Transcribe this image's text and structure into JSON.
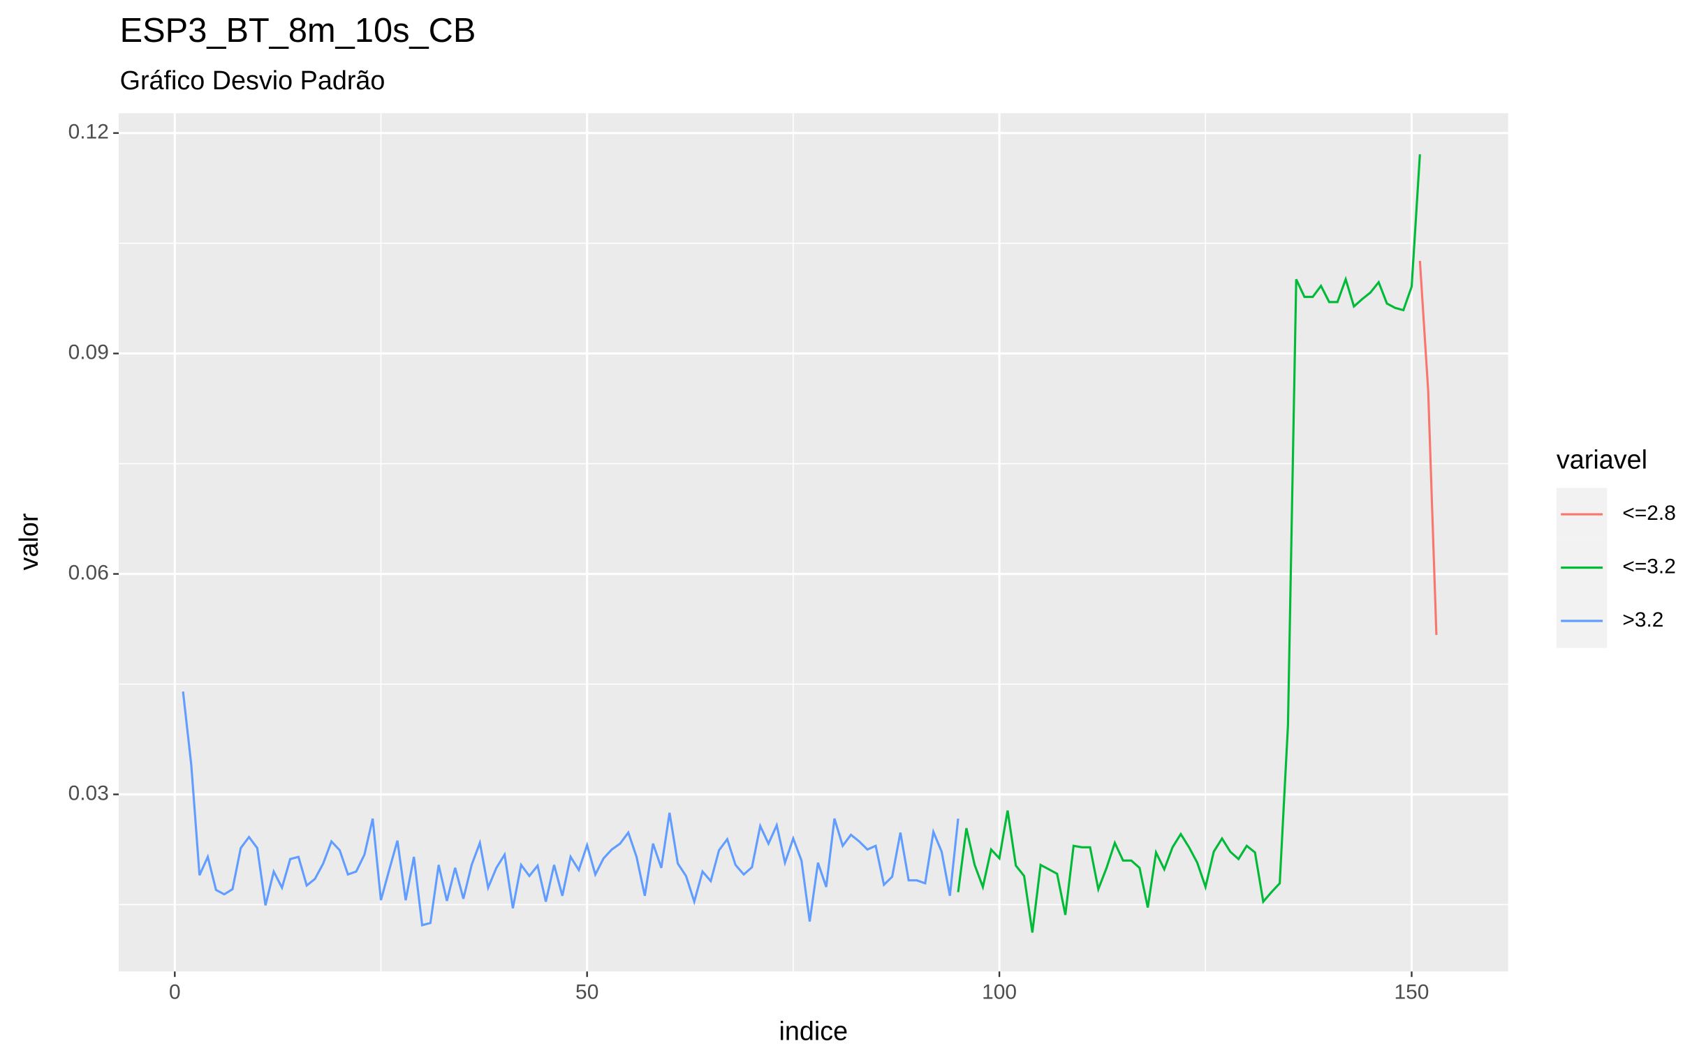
{
  "chart_data": {
    "type": "line",
    "title": "ESP3_BT_8m_10s_CB",
    "subtitle": "Gráfico Desvio Padrão",
    "x_label": "indice",
    "y_label": "valor",
    "legend_title": "variavel",
    "legend_position": "right",
    "grid": true,
    "xlim": [
      -6.8,
      161.7
    ],
    "xticks": [
      0,
      50,
      100,
      150
    ],
    "ylim": [
      0.0059,
      0.1227
    ],
    "yticks": [
      0.03,
      0.06,
      0.09,
      0.12
    ],
    "series": [
      {
        "name": "<=2.8",
        "color": "#f8766d",
        "x": [
          151,
          152,
          153
        ],
        "values": [
          0.1026,
          0.085,
          0.0517
        ]
      },
      {
        "name": "<=3.2",
        "color": "#00ba38",
        "x": [
          95,
          96,
          97,
          98,
          99,
          100,
          101,
          102,
          103,
          104,
          105,
          106,
          107,
          108,
          109,
          110,
          111,
          112,
          113,
          114,
          115,
          116,
          117,
          118,
          119,
          120,
          121,
          122,
          123,
          124,
          125,
          126,
          127,
          128,
          129,
          130,
          131,
          132,
          133,
          134,
          135,
          136,
          137,
          138,
          139,
          140,
          141,
          142,
          143,
          144,
          145,
          146,
          147,
          148,
          149,
          150,
          151
        ],
        "values": [
          0.0167,
          0.0254,
          0.0204,
          0.0174,
          0.0225,
          0.0213,
          0.0278,
          0.0203,
          0.0189,
          0.0112,
          0.0204,
          0.0198,
          0.0192,
          0.0136,
          0.023,
          0.0228,
          0.0228,
          0.0171,
          0.02,
          0.0234,
          0.021,
          0.021,
          0.02,
          0.0146,
          0.0221,
          0.0198,
          0.0228,
          0.0246,
          0.0228,
          0.0207,
          0.0174,
          0.0222,
          0.024,
          0.0222,
          0.0212,
          0.023,
          0.0221,
          0.0154,
          0.0167,
          0.0179,
          0.0394,
          0.1001,
          0.0977,
          0.0977,
          0.0992,
          0.097,
          0.097,
          0.1001,
          0.0964,
          0.0974,
          0.0983,
          0.0997,
          0.0968,
          0.0962,
          0.0959,
          0.0991,
          0.1171
        ]
      },
      {
        "name": ">3.2",
        "color": "#619cff",
        "x": [
          1,
          2,
          3,
          4,
          5,
          6,
          7,
          8,
          9,
          10,
          11,
          12,
          13,
          14,
          15,
          16,
          17,
          18,
          19,
          20,
          21,
          22,
          23,
          24,
          25,
          26,
          27,
          28,
          29,
          30,
          31,
          32,
          33,
          34,
          35,
          36,
          37,
          38,
          39,
          40,
          41,
          42,
          43,
          44,
          45,
          46,
          47,
          48,
          49,
          50,
          51,
          52,
          53,
          54,
          55,
          56,
          57,
          58,
          59,
          60,
          61,
          62,
          63,
          64,
          65,
          66,
          67,
          68,
          69,
          70,
          71,
          72,
          73,
          74,
          75,
          76,
          77,
          78,
          79,
          80,
          81,
          82,
          83,
          84,
          85,
          86,
          87,
          88,
          89,
          90,
          91,
          92,
          93,
          94,
          95
        ],
        "values": [
          0.044,
          0.034,
          0.019,
          0.0215,
          0.017,
          0.0164,
          0.0171,
          0.0227,
          0.0242,
          0.0227,
          0.0149,
          0.0195,
          0.0173,
          0.0212,
          0.0215,
          0.0176,
          0.0185,
          0.0206,
          0.0236,
          0.0224,
          0.0191,
          0.0195,
          0.0218,
          0.0267,
          0.0156,
          0.0197,
          0.0237,
          0.0156,
          0.0215,
          0.0122,
          0.0125,
          0.0204,
          0.0155,
          0.02,
          0.0158,
          0.0204,
          0.0234,
          0.0173,
          0.02,
          0.0218,
          0.0145,
          0.0204,
          0.0189,
          0.0203,
          0.0154,
          0.0204,
          0.0162,
          0.0215,
          0.0197,
          0.0231,
          0.0191,
          0.0213,
          0.0225,
          0.0233,
          0.0248,
          0.0215,
          0.0162,
          0.0233,
          0.02,
          0.0275,
          0.0206,
          0.0189,
          0.0154,
          0.0195,
          0.0182,
          0.0224,
          0.0239,
          0.0204,
          0.0191,
          0.0201,
          0.0257,
          0.0233,
          0.0258,
          0.0207,
          0.024,
          0.021,
          0.0127,
          0.0207,
          0.0174,
          0.0267,
          0.023,
          0.0245,
          0.0236,
          0.0225,
          0.023,
          0.0177,
          0.0188,
          0.0248,
          0.0183,
          0.0183,
          0.0179,
          0.0249,
          0.0222,
          0.0162,
          0.0267
        ]
      }
    ]
  }
}
